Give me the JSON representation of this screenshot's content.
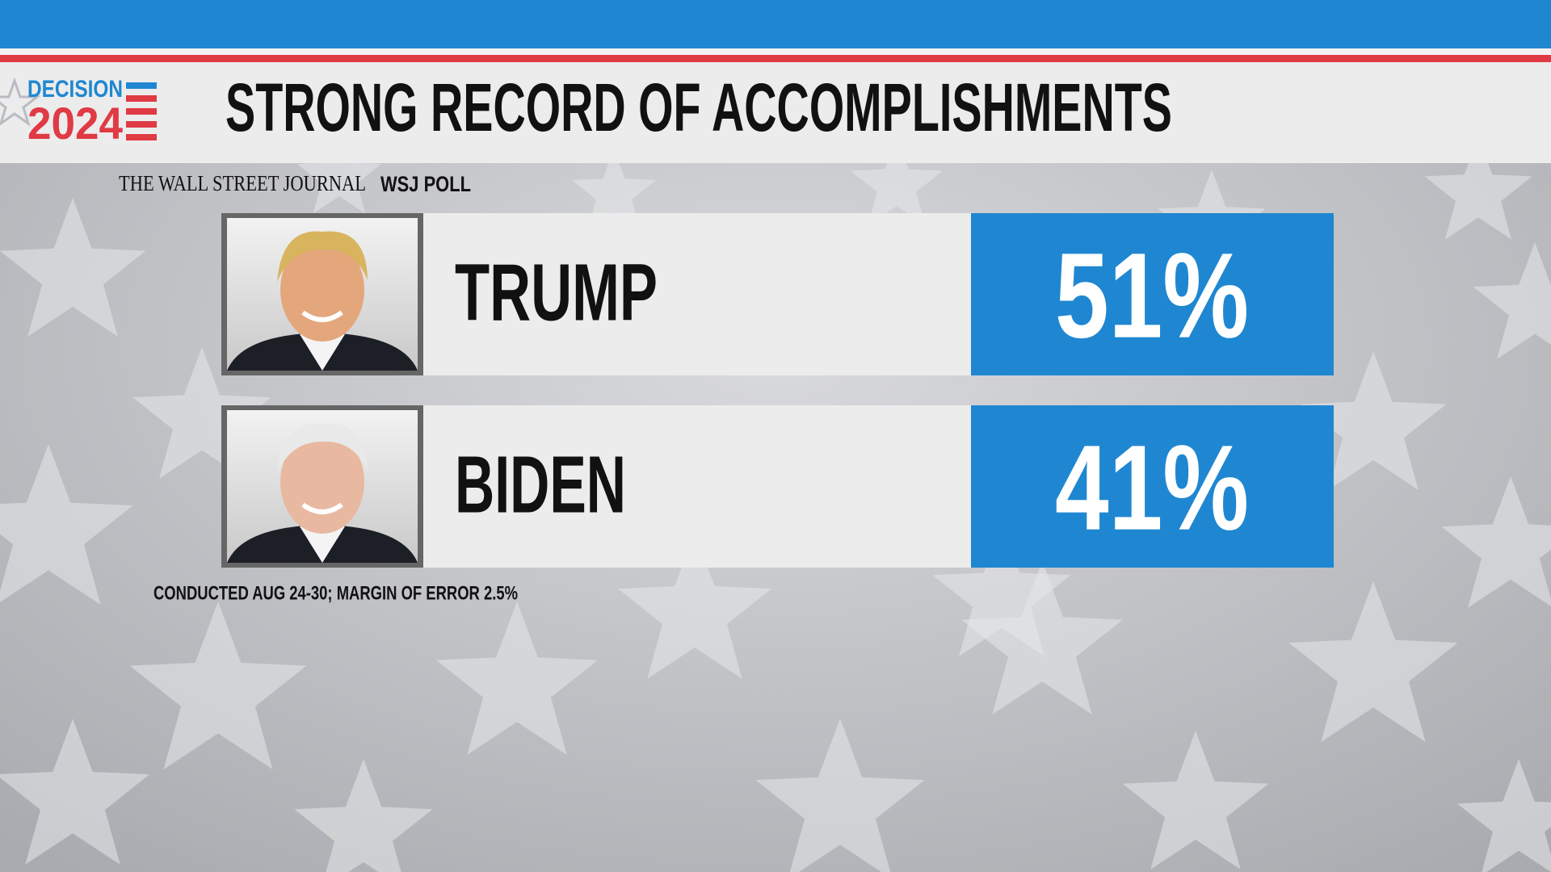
{
  "header": {
    "logo": {
      "line1": "DECISION",
      "line2": "2024"
    },
    "title": "STRONG RECORD OF ACCOMPLISHMENTS"
  },
  "source": {
    "publication": "THE WALL STREET JOURNAL",
    "label": "WSJ POLL"
  },
  "results": [
    {
      "name": "TRUMP",
      "value": "51%"
    },
    {
      "name": "BIDEN",
      "value": "41%"
    }
  ],
  "footnote": "CONDUCTED AUG 24-30; MARGIN OF ERROR 2.5%"
}
